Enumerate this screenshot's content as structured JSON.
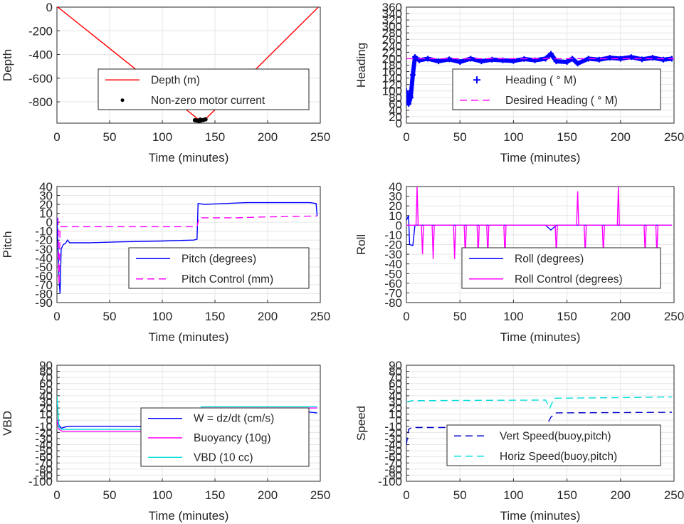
{
  "chart_data": [
    {
      "id": "depth",
      "type": "line",
      "xlabel": "Time (minutes)",
      "ylabel": "Depth",
      "xlim": [
        0,
        250
      ],
      "ylim": [
        -980,
        0
      ],
      "xticks": [
        0,
        50,
        100,
        150,
        200,
        250
      ],
      "yticks": [
        0,
        -200,
        -400,
        -600,
        -800
      ],
      "grid": true,
      "legend_position": "center-right",
      "series": [
        {
          "name": "Depth (m)",
          "style": "solid",
          "color": "#ff0000",
          "points": [
            [
              0,
              0
            ],
            [
              2,
              -8
            ],
            [
              136,
              -960
            ],
            [
              140,
              -955
            ],
            [
              248,
              -2
            ]
          ]
        },
        {
          "name": "Non-zero motor current",
          "style": "dots",
          "color": "#000000",
          "points": [
            [
              131,
              -955
            ],
            [
              133,
              -958
            ],
            [
              135,
              -962
            ],
            [
              137,
              -957
            ],
            [
              139,
              -953
            ],
            [
              141,
              -948
            ],
            [
              136,
              -950
            ]
          ]
        }
      ]
    },
    {
      "id": "heading",
      "type": "line",
      "xlabel": "Time (minutes)",
      "ylabel": "Heading",
      "xlim": [
        0,
        250
      ],
      "ylim": [
        0,
        360
      ],
      "xticks": [
        0,
        50,
        100,
        150,
        200,
        250
      ],
      "yticks": [
        0,
        20,
        40,
        60,
        80,
        100,
        120,
        140,
        160,
        180,
        200,
        220,
        240,
        260,
        280,
        300,
        320,
        340,
        360
      ],
      "grid": true,
      "legend_position": "bottom-right",
      "series": [
        {
          "name": "Heading (   ° M)",
          "style": "plus",
          "color": "#0000ff",
          "points": [
            [
              0,
              100
            ],
            [
              2,
              60
            ],
            [
              4,
              80
            ],
            [
              6,
              150
            ],
            [
              8,
              205
            ],
            [
              12,
              195
            ],
            [
              20,
              200
            ],
            [
              30,
              192
            ],
            [
              40,
              198
            ],
            [
              50,
              190
            ],
            [
              60,
              200
            ],
            [
              70,
              192
            ],
            [
              80,
              197
            ],
            [
              90,
              195
            ],
            [
              100,
              193
            ],
            [
              110,
              199
            ],
            [
              120,
              195
            ],
            [
              130,
              200
            ],
            [
              135,
              215
            ],
            [
              140,
              192
            ],
            [
              150,
              190
            ],
            [
              155,
              200
            ],
            [
              160,
              185
            ],
            [
              170,
              200
            ],
            [
              180,
              197
            ],
            [
              190,
              203
            ],
            [
              200,
              200
            ],
            [
              210,
              205
            ],
            [
              220,
              198
            ],
            [
              230,
              203
            ],
            [
              240,
              197
            ],
            [
              248,
              200
            ]
          ]
        },
        {
          "name": "Desired Heading (     ° M)",
          "style": "dashed",
          "color": "#ff00ff",
          "points": [
            [
              0,
              200
            ],
            [
              250,
              200
            ]
          ]
        }
      ]
    },
    {
      "id": "pitch",
      "type": "line",
      "xlabel": "Time (minutes)",
      "ylabel": "Pitch",
      "xlim": [
        0,
        250
      ],
      "ylim": [
        -90,
        40
      ],
      "xticks": [
        0,
        50,
        100,
        150,
        200,
        250
      ],
      "yticks": [
        40,
        30,
        20,
        10,
        0,
        -10,
        -20,
        -30,
        -40,
        -50,
        -60,
        -70,
        -80,
        -90
      ],
      "grid": true,
      "legend_position": "bottom-right",
      "series": [
        {
          "name": "Pitch (degrees)",
          "style": "solid",
          "color": "#0000ff",
          "points": [
            [
              0,
              5
            ],
            [
              2,
              -65
            ],
            [
              3,
              -80
            ],
            [
              4,
              -30
            ],
            [
              6,
              -25
            ],
            [
              8,
              -24
            ],
            [
              10,
              -20
            ],
            [
              12,
              -23
            ],
            [
              30,
              -23
            ],
            [
              60,
              -22
            ],
            [
              100,
              -21
            ],
            [
              130,
              -20
            ],
            [
              133,
              -19
            ],
            [
              134,
              21
            ],
            [
              140,
              20
            ],
            [
              160,
              21
            ],
            [
              180,
              22
            ],
            [
              200,
              22
            ],
            [
              220,
              22
            ],
            [
              240,
              22
            ],
            [
              246,
              21
            ],
            [
              247,
              7
            ]
          ]
        },
        {
          "name": "Pitch Control (mm)",
          "style": "dashed",
          "color": "#ff00ff",
          "points": [
            [
              1,
              5
            ],
            [
              2,
              -70
            ],
            [
              3,
              -5
            ],
            [
              133,
              -5
            ],
            [
              135,
              5
            ],
            [
              170,
              5
            ],
            [
              200,
              6
            ],
            [
              247,
              7
            ]
          ]
        }
      ]
    },
    {
      "id": "roll",
      "type": "line",
      "xlabel": "Time (minutes)",
      "ylabel": "Roll",
      "xlim": [
        0,
        250
      ],
      "ylim": [
        -80,
        40
      ],
      "xticks": [
        0,
        50,
        100,
        150,
        200,
        250
      ],
      "yticks": [
        40,
        30,
        20,
        10,
        0,
        -10,
        -20,
        -30,
        -40,
        -50,
        -60,
        -70,
        -80
      ],
      "grid": true,
      "legend_position": "bottom-right",
      "series": [
        {
          "name": "Roll (degrees)",
          "style": "solid",
          "color": "#0000ff",
          "points": [
            [
              0,
              5
            ],
            [
              2,
              10
            ],
            [
              3,
              -20
            ],
            [
              6,
              -21
            ],
            [
              8,
              0
            ],
            [
              130,
              0
            ],
            [
              135,
              -5
            ],
            [
              140,
              0
            ],
            [
              200,
              0
            ],
            [
              248,
              0
            ]
          ]
        },
        {
          "name": "Roll Control (degrees)",
          "style": "solid",
          "color": "#ff00ff",
          "points": [
            [
              0,
              0
            ],
            [
              9,
              0
            ],
            [
              10,
              40
            ],
            [
              11,
              0
            ],
            [
              14,
              0
            ],
            [
              15,
              -30
            ],
            [
              16,
              0
            ],
            [
              24,
              0
            ],
            [
              25,
              -35
            ],
            [
              26,
              0
            ],
            [
              44,
              0
            ],
            [
              45,
              -35
            ],
            [
              46,
              0
            ],
            [
              54,
              0
            ],
            [
              55,
              -33
            ],
            [
              56,
              0
            ],
            [
              66,
              0
            ],
            [
              67,
              -33
            ],
            [
              68,
              0
            ],
            [
              75,
              0
            ],
            [
              76,
              -33
            ],
            [
              77,
              0
            ],
            [
              91,
              0
            ],
            [
              92,
              -35
            ],
            [
              93,
              0
            ],
            [
              139,
              0
            ],
            [
              140,
              -30
            ],
            [
              141,
              0
            ],
            [
              159,
              0
            ],
            [
              160,
              35
            ],
            [
              161,
              0
            ],
            [
              166,
              0
            ],
            [
              167,
              -30
            ],
            [
              168,
              0
            ],
            [
              183,
              0
            ],
            [
              184,
              -30
            ],
            [
              185,
              0
            ],
            [
              197,
              0
            ],
            [
              198,
              40
            ],
            [
              199,
              0
            ],
            [
              222,
              0
            ],
            [
              223,
              -30
            ],
            [
              224,
              0
            ],
            [
              233,
              0
            ],
            [
              234,
              -30
            ],
            [
              235,
              0
            ],
            [
              248,
              0
            ]
          ]
        }
      ]
    },
    {
      "id": "vbd",
      "type": "line",
      "xlabel": "Time (minutes)",
      "ylabel": "VBD",
      "xlim": [
        0,
        250
      ],
      "ylim": [
        -100,
        90
      ],
      "xticks": [
        0,
        50,
        100,
        150,
        200,
        250
      ],
      "yticks": [
        90,
        80,
        70,
        60,
        50,
        40,
        30,
        20,
        10,
        0,
        -10,
        -20,
        -30,
        -40,
        -50,
        -60,
        -70,
        -80,
        -90,
        -100
      ],
      "grid": true,
      "legend_position": "bottom-right",
      "series": [
        {
          "name": "W = dz/dt (cm/s)",
          "style": "solid",
          "color": "#0000ff",
          "points": [
            [
              0,
              0
            ],
            [
              2,
              -8
            ],
            [
              4,
              -13
            ],
            [
              10,
              -10
            ],
            [
              50,
              -10
            ],
            [
              100,
              -11
            ],
            [
              130,
              -10
            ],
            [
              133,
              -12
            ],
            [
              137,
              10
            ],
            [
              150,
              12
            ],
            [
              200,
              14
            ],
            [
              230,
              15
            ],
            [
              247,
              12
            ]
          ]
        },
        {
          "name": "Buoyancy (10g)",
          "style": "solid",
          "color": "#ff00ff",
          "points": [
            [
              0,
              0
            ],
            [
              2,
              -15
            ],
            [
              5,
              -18
            ],
            [
              133,
              -18
            ],
            [
              137,
              20
            ],
            [
              247,
              20
            ]
          ]
        },
        {
          "name": "VBD (10 cc)",
          "style": "solid",
          "color": "#00dddd",
          "points": [
            [
              0,
              40
            ],
            [
              2,
              -12
            ],
            [
              5,
              -15
            ],
            [
              133,
              -15
            ],
            [
              137,
              22
            ],
            [
              247,
              22
            ]
          ]
        }
      ]
    },
    {
      "id": "speed",
      "type": "line",
      "xlabel": "Time (minutes)",
      "ylabel": "Speed",
      "xlim": [
        0,
        250
      ],
      "ylim": [
        -100,
        90
      ],
      "xticks": [
        0,
        50,
        100,
        150,
        200,
        250
      ],
      "yticks": [
        90,
        80,
        70,
        60,
        50,
        40,
        30,
        20,
        10,
        0,
        -10,
        -20,
        -30,
        -40,
        -50,
        -60,
        -70,
        -80,
        -90,
        -100
      ],
      "grid": true,
      "legend_position": "bottom-right",
      "series": [
        {
          "name": "Vert Speed(buoy,pitch)",
          "style": "dashed",
          "color": "#0000cc",
          "points": [
            [
              0,
              -40
            ],
            [
              2,
              -15
            ],
            [
              5,
              -12
            ],
            [
              130,
              -12
            ],
            [
              135,
              5
            ],
            [
              140,
              12
            ],
            [
              248,
              13
            ]
          ]
        },
        {
          "name": "Horiz Speed(buoy,pitch)",
          "style": "dashed",
          "color": "#00dddd",
          "points": [
            [
              0,
              30
            ],
            [
              5,
              32
            ],
            [
              130,
              33
            ],
            [
              134,
              20
            ],
            [
              138,
              36
            ],
            [
              200,
              37
            ],
            [
              248,
              38
            ]
          ]
        }
      ]
    }
  ]
}
